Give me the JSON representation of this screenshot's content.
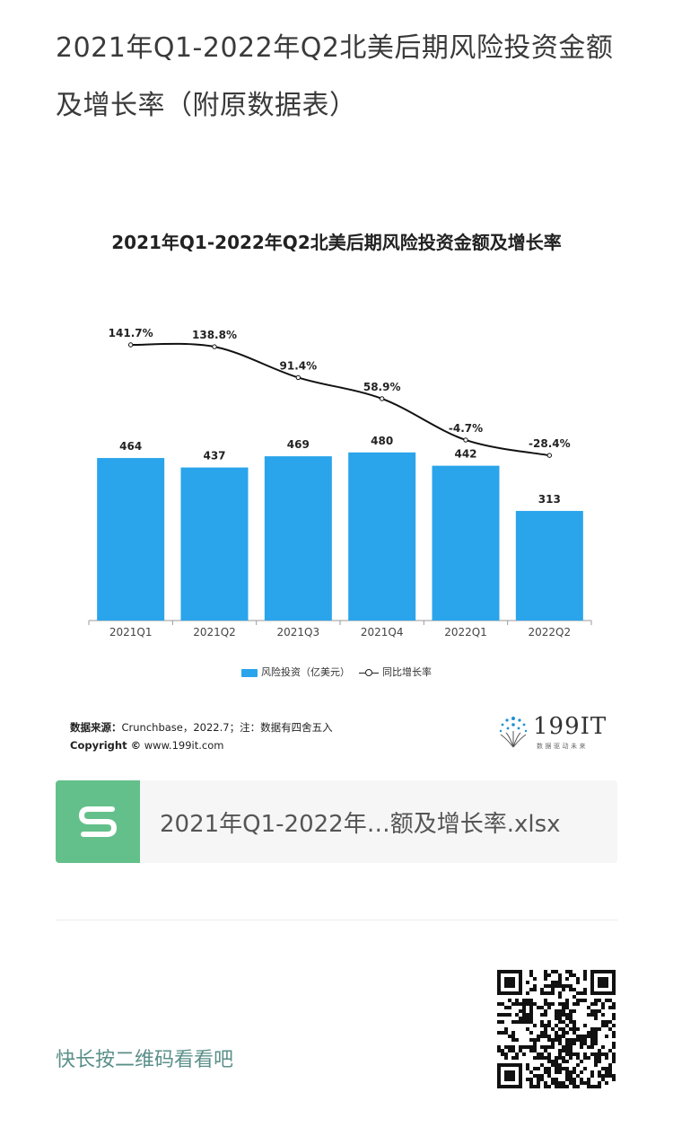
{
  "page_title": "2021年Q1-2022年Q2北美后期风险投资金额及增长率（附原数据表）",
  "chart_data": {
    "type": "bar",
    "title": "2021年Q1-2022年Q2北美后期风险投资金额及增长率",
    "categories": [
      "2021Q1",
      "2021Q2",
      "2021Q3",
      "2021Q4",
      "2022Q1",
      "2022Q2"
    ],
    "series": [
      {
        "name": "风险投资（亿美元）",
        "type": "bar",
        "values": [
          464,
          437,
          469,
          480,
          442,
          313
        ],
        "labels": [
          "464",
          "437",
          "469",
          "480",
          "442",
          "313"
        ],
        "color": "#2aa4eb"
      },
      {
        "name": "同比增长率",
        "type": "line",
        "values": [
          141.7,
          138.8,
          91.4,
          58.9,
          -4.7,
          -28.4
        ],
        "labels": [
          "141.7%",
          "138.8%",
          "91.4%",
          "58.9%",
          "-4.7%",
          "-28.4%"
        ],
        "color": "#111111"
      }
    ],
    "bar_ylim": [
      0,
      1000
    ],
    "line_ylim": [
      -60,
      150
    ],
    "grid": false,
    "legend_position": "bottom"
  },
  "source": {
    "label": "数据来源：",
    "text": "Crunchbase，2022.7；注：数据有四舍五入",
    "copyright_label": "Copyright ©",
    "copyright_text": " www.199it.com"
  },
  "brand": {
    "name": "199IT",
    "tagline": "数据驱动未来"
  },
  "file_card": {
    "icon": "spreadsheet-s-icon",
    "file_name": "2021年Q1-2022年…额及增长率.xlsx",
    "icon_color": "#63c08a"
  },
  "qr_hint": "快长按二维码看看吧"
}
